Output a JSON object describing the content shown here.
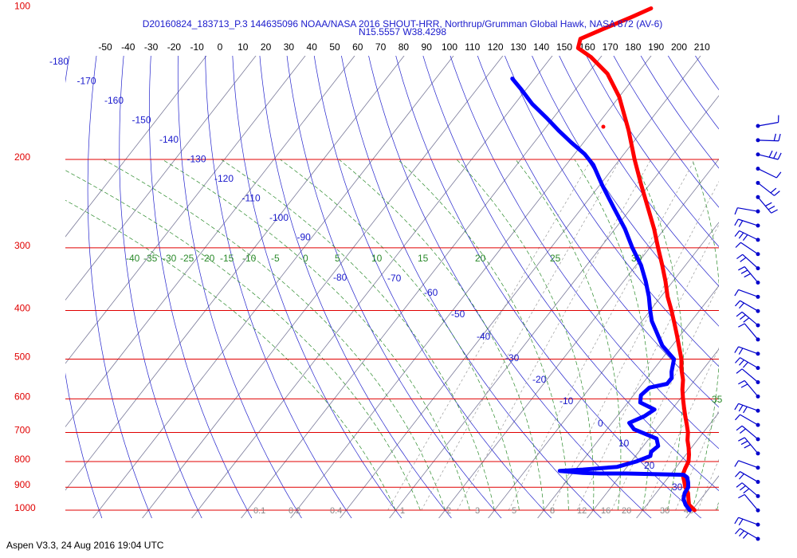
{
  "header": {
    "title_line1": "D20160824_183713_P.3 144635096 NOAA/NASA 2016 SHOUT-HRR, Northrup/Grumman Global Hawk, NASA 872 (AV-6)",
    "title_line2": "N15.5557 W38.4298"
  },
  "footer": {
    "text": "Aspen V3.3, 24 Aug 2016  19:04 UTC"
  },
  "colors": {
    "temperature": "#ff0000",
    "dewpoint": "#0000ff",
    "isobar": "#e00000",
    "isotherm": "#000000",
    "dry_adiabat": "#2222cc",
    "moist_adiabat": "#2a8a2a",
    "mixing_ratio": "#999999",
    "wind_barb": "#0000cc"
  },
  "chart_data": {
    "type": "skew-t",
    "top_axis_ticks": [
      "-50",
      "-40",
      "-30",
      "-20",
      "-10",
      "0",
      "10",
      "20",
      "30",
      "40",
      "50",
      "60",
      "70",
      "80",
      "90",
      "100",
      "110",
      "120",
      "130",
      "140",
      "150",
      "160",
      "170",
      "180",
      "190",
      "200",
      "210"
    ],
    "isobars": [
      {
        "p": 100,
        "label": "100"
      },
      {
        "p": 200,
        "label": "200"
      },
      {
        "p": 300,
        "label": "300"
      },
      {
        "p": 400,
        "label": "400"
      },
      {
        "p": 500,
        "label": "500"
      },
      {
        "p": 600,
        "label": "600"
      },
      {
        "p": 700,
        "label": "700"
      },
      {
        "p": 800,
        "label": "800"
      },
      {
        "p": 900,
        "label": "900"
      },
      {
        "p": 1000,
        "label": "1000"
      }
    ],
    "potential_temperature_labels": [
      "-180",
      "-170",
      "-160",
      "-150",
      "-140",
      "-130",
      "-120",
      "-110",
      "-100",
      "-90"
    ],
    "dry_adiabat_labels": [
      "-80",
      "-70",
      "-60",
      "-50",
      "-40",
      "-30",
      "-20",
      "-10",
      "0",
      "10",
      "20",
      "30"
    ],
    "moist_adiabat_labels": [
      "-40",
      "-35",
      "-30",
      "-25",
      "-20",
      "-15",
      "-10",
      "-5",
      "0",
      "5",
      "10",
      "15",
      "20",
      "25",
      "30",
      "35"
    ],
    "mixing_ratio_labels": [
      "0.1",
      "0.2",
      "0.4",
      "1",
      "2",
      "3",
      "5",
      "8",
      "12",
      "16",
      "20",
      "30",
      "40"
    ],
    "temperature_profile": [
      [
        1000,
        20.5
      ],
      [
        975,
        18.5
      ],
      [
        950,
        17.5
      ],
      [
        925,
        16.5
      ],
      [
        900,
        15
      ],
      [
        875,
        13.8
      ],
      [
        850,
        12.5
      ],
      [
        825,
        12.0
      ],
      [
        800,
        11.6
      ],
      [
        775,
        10.6
      ],
      [
        750,
        9.4
      ],
      [
        725,
        8.0
      ],
      [
        700,
        6.9
      ],
      [
        675,
        5.4
      ],
      [
        650,
        3.8
      ],
      [
        625,
        2.2
      ],
      [
        600,
        0.6
      ],
      [
        575,
        -1.0
      ],
      [
        550,
        -2.4
      ],
      [
        525,
        -4.3
      ],
      [
        500,
        -6.0
      ],
      [
        475,
        -8.2
      ],
      [
        450,
        -10.5
      ],
      [
        425,
        -13.0
      ],
      [
        400,
        -15.7
      ],
      [
        375,
        -18.7
      ],
      [
        350,
        -21.5
      ],
      [
        325,
        -24.7
      ],
      [
        300,
        -28.3
      ],
      [
        275,
        -32.1
      ],
      [
        250,
        -36.6
      ],
      [
        225,
        -41.6
      ],
      [
        200,
        -47.0
      ],
      [
        175,
        -52.8
      ],
      [
        150,
        -60.0
      ],
      [
        135,
        -66.0
      ],
      [
        125,
        -72.0
      ],
      [
        120,
        -76.0
      ],
      [
        115,
        -77.0
      ],
      [
        110,
        -74.0
      ],
      [
        104,
        -70.0
      ],
      [
        100,
        -67.5
      ]
    ],
    "dewpoint_profile": [
      [
        1000,
        19.5
      ],
      [
        975,
        17.8
      ],
      [
        950,
        16.5
      ],
      [
        925,
        15.8
      ],
      [
        900,
        15.6
      ],
      [
        880,
        14.8
      ],
      [
        860,
        13.8
      ],
      [
        850,
        12.7
      ],
      [
        845,
        1.0
      ],
      [
        845,
        -4.5
      ],
      [
        843,
        -8.0
      ],
      [
        835,
        -13.0
      ],
      [
        830,
        -8.5
      ],
      [
        820,
        -2.0
      ],
      [
        800,
        1.0
      ],
      [
        780,
        3.0
      ],
      [
        765,
        2.5
      ],
      [
        745,
        3.0
      ],
      [
        720,
        1.5
      ],
      [
        690,
        -4.5
      ],
      [
        670,
        -6.5
      ],
      [
        650,
        -4.5
      ],
      [
        630,
        -3.5
      ],
      [
        610,
        -7.5
      ],
      [
        590,
        -8.5
      ],
      [
        570,
        -8.0
      ],
      [
        560,
        -5.0
      ],
      [
        545,
        -5.0
      ],
      [
        530,
        -6.0
      ],
      [
        500,
        -7.5
      ],
      [
        470,
        -12.0
      ],
      [
        440,
        -15.5
      ],
      [
        420,
        -18.0
      ],
      [
        400,
        -20.0
      ],
      [
        375,
        -22.5
      ],
      [
        350,
        -25.5
      ],
      [
        325,
        -29.0
      ],
      [
        300,
        -33.5
      ],
      [
        275,
        -38.0
      ],
      [
        250,
        -43.5
      ],
      [
        225,
        -49.5
      ],
      [
        205,
        -54.5
      ],
      [
        195,
        -58.0
      ],
      [
        185,
        -62.5
      ],
      [
        175,
        -67.0
      ],
      [
        165,
        -71.5
      ],
      [
        155,
        -76.5
      ],
      [
        145,
        -81.0
      ],
      [
        138,
        -84.5
      ]
    ],
    "wind_profile_hPa": [
      100,
      110,
      120,
      130,
      140,
      155,
      170,
      185,
      200,
      215,
      240,
      260,
      290,
      320,
      350,
      380,
      410,
      450,
      490,
      530,
      570,
      610,
      650,
      700,
      750,
      800,
      850,
      900,
      950,
      1000
    ],
    "grid": true,
    "legend": "none"
  }
}
